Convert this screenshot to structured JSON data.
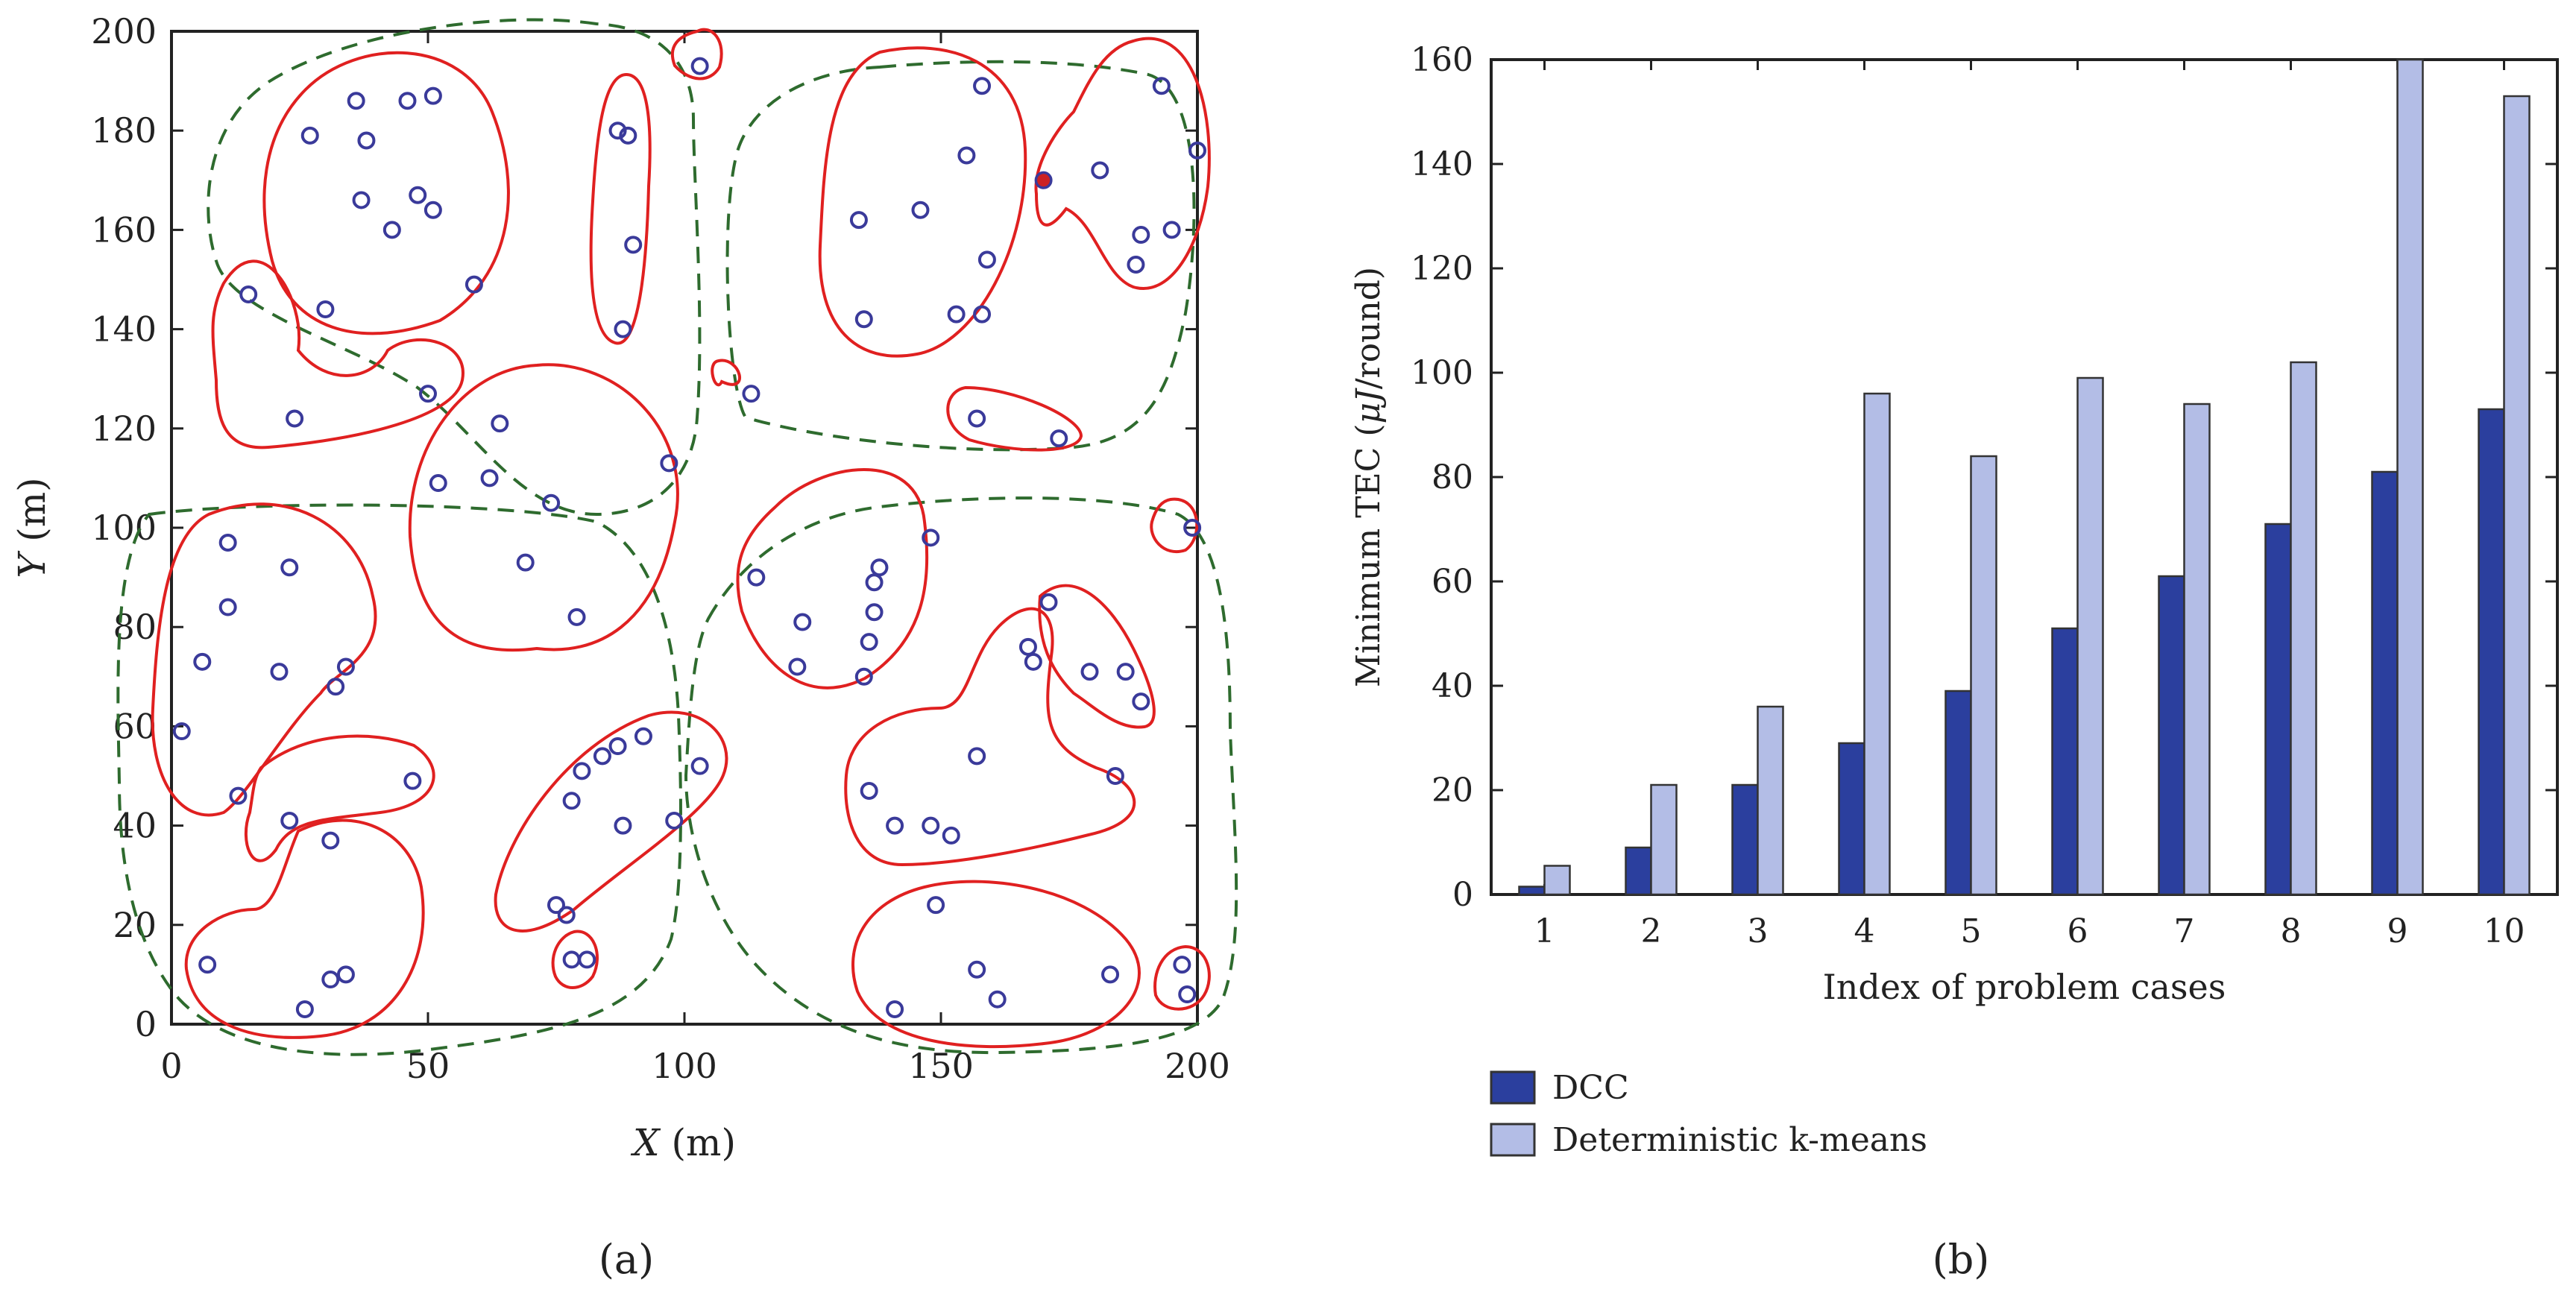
{
  "chart_data": [
    {
      "type": "scatter",
      "panel_label": "(a)",
      "xlabel_var": "X",
      "xlabel_unit": " (m)",
      "ylabel_var": "Y",
      "ylabel_unit": " (m)",
      "xlim": [
        0,
        200
      ],
      "ylim": [
        0,
        200
      ],
      "x_ticks": [
        0,
        50,
        100,
        150,
        200
      ],
      "y_ticks": [
        0,
        20,
        40,
        60,
        80,
        100,
        120,
        140,
        160,
        180,
        200
      ],
      "grid": false,
      "points": [
        [
          27,
          179
        ],
        [
          36,
          186
        ],
        [
          38,
          178
        ],
        [
          46,
          186
        ],
        [
          51,
          187
        ],
        [
          48,
          167
        ],
        [
          51,
          164
        ],
        [
          37,
          166
        ],
        [
          43,
          160
        ],
        [
          59,
          149
        ],
        [
          30,
          144
        ],
        [
          15,
          147
        ],
        [
          24,
          122
        ],
        [
          50,
          127
        ],
        [
          87,
          180
        ],
        [
          89,
          179
        ],
        [
          90,
          157
        ],
        [
          88,
          140
        ],
        [
          103,
          193
        ],
        [
          113,
          127
        ],
        [
          134,
          162
        ],
        [
          146,
          164
        ],
        [
          158,
          189
        ],
        [
          155,
          175
        ],
        [
          135,
          142
        ],
        [
          153,
          143
        ],
        [
          158,
          143
        ],
        [
          159,
          154
        ],
        [
          170,
          170
        ],
        [
          181,
          172
        ],
        [
          193,
          189
        ],
        [
          200,
          176
        ],
        [
          189,
          159
        ],
        [
          195,
          160
        ],
        [
          188,
          153
        ],
        [
          157,
          122
        ],
        [
          173,
          118
        ],
        [
          52,
          109
        ],
        [
          64,
          121
        ],
        [
          62,
          110
        ],
        [
          74,
          105
        ],
        [
          69,
          93
        ],
        [
          79,
          82
        ],
        [
          97,
          113
        ],
        [
          199,
          100
        ],
        [
          11,
          97
        ],
        [
          23,
          92
        ],
        [
          11,
          84
        ],
        [
          6,
          73
        ],
        [
          21,
          71
        ],
        [
          34,
          72
        ],
        [
          32,
          68
        ],
        [
          2,
          59
        ],
        [
          13,
          46
        ],
        [
          47,
          49
        ],
        [
          23,
          41
        ],
        [
          31,
          37
        ],
        [
          7,
          12
        ],
        [
          26,
          3
        ],
        [
          31,
          9
        ],
        [
          34,
          10
        ],
        [
          78,
          13
        ],
        [
          81,
          13
        ],
        [
          75,
          24
        ],
        [
          77,
          22
        ],
        [
          78,
          45
        ],
        [
          80,
          51
        ],
        [
          84,
          54
        ],
        [
          87,
          56
        ],
        [
          92,
          58
        ],
        [
          88,
          40
        ],
        [
          98,
          41
        ],
        [
          103,
          52
        ],
        [
          114,
          90
        ],
        [
          123,
          81
        ],
        [
          122,
          72
        ],
        [
          135,
          70
        ],
        [
          136,
          77
        ],
        [
          137,
          83
        ],
        [
          137,
          89
        ],
        [
          138,
          92
        ],
        [
          148,
          98
        ],
        [
          136,
          47
        ],
        [
          141,
          40
        ],
        [
          148,
          40
        ],
        [
          152,
          38
        ],
        [
          157,
          54
        ],
        [
          167,
          76
        ],
        [
          168,
          73
        ],
        [
          171,
          85
        ],
        [
          179,
          71
        ],
        [
          186,
          71
        ],
        [
          189,
          65
        ],
        [
          184,
          50
        ],
        [
          149,
          24
        ],
        [
          157,
          11
        ],
        [
          161,
          5
        ],
        [
          141,
          3
        ],
        [
          183,
          10
        ],
        [
          197,
          12
        ],
        [
          198,
          6
        ]
      ],
      "highlight_points": [
        [
          170,
          170
        ]
      ],
      "point_color": "#3a3a9a",
      "highlight_color": "#cc2222",
      "cluster_color": "#e02020",
      "group_color": "#2e6b2e"
    },
    {
      "type": "bar",
      "panel_label": "(b)",
      "title": "",
      "xlabel": "Index of problem cases",
      "ylabel_pre": "Minimum TEC (",
      "ylabel_mu": "μ",
      "ylabel_J": "J",
      "ylabel_post": "/round)",
      "ylim": [
        0,
        160
      ],
      "y_ticks": [
        0,
        20,
        40,
        60,
        80,
        100,
        120,
        140,
        160
      ],
      "grid": false,
      "categories": [
        "1",
        "2",
        "3",
        "4",
        "5",
        "6",
        "7",
        "8",
        "9",
        "10"
      ],
      "series": [
        {
          "name": "DCC",
          "values": [
            1.5,
            9,
            21,
            29,
            39,
            51,
            61,
            71,
            81,
            93
          ],
          "color": "#2b3f9e"
        },
        {
          "name": "Deterministic k-means",
          "values": [
            5.5,
            21,
            36,
            96,
            84,
            99,
            94,
            102,
            160,
            153
          ],
          "color": "#b3bde6"
        }
      ],
      "legend": "below"
    }
  ]
}
